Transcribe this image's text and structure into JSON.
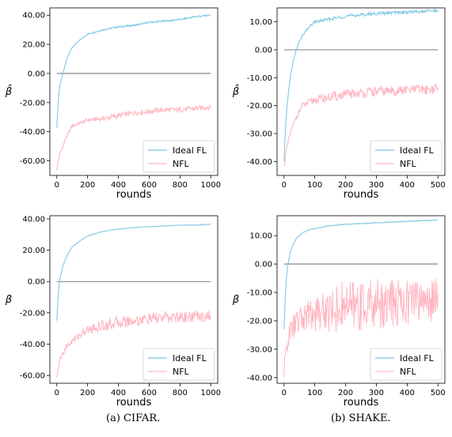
{
  "captions": [
    "(a) CIFAR.",
    "(b) SHAKE."
  ],
  "colors": {
    "ideal": "#7ec8e3",
    "nfl": "#ffb6c1",
    "zero_line": "#555555"
  },
  "chart_data": [
    {
      "id": "cifar-beta-hat",
      "type": "line",
      "ylabel": "β̂",
      "xlabel": "rounds",
      "xlim": [
        0,
        1000
      ],
      "ylim": [
        -70,
        45
      ],
      "xticks": [
        0,
        200,
        400,
        600,
        800,
        1000
      ],
      "yticks": [
        -60,
        -40,
        -20,
        0,
        20,
        40
      ],
      "ytick_labels": [
        "-60.00",
        "-40.00",
        "-20.00",
        "0.00",
        "20.00",
        "40.00"
      ],
      "legend": "bottom-right",
      "reference_line": 0,
      "series": [
        {
          "name": "Ideal FL",
          "color": "ideal",
          "x": [
            0,
            10,
            20,
            40,
            60,
            80,
            100,
            150,
            200,
            300,
            400,
            500,
            600,
            700,
            800,
            900,
            1000
          ],
          "y": [
            -37,
            -18,
            -8,
            0,
            8,
            14,
            18,
            23,
            27,
            30,
            32,
            33,
            35,
            36,
            37,
            39,
            40
          ]
        },
        {
          "name": "NFL",
          "color": "nfl",
          "x": [
            0,
            10,
            20,
            40,
            60,
            80,
            100,
            150,
            200,
            300,
            400,
            500,
            600,
            700,
            800,
            900,
            1000
          ],
          "y": [
            -66,
            -60,
            -55,
            -50,
            -44,
            -40,
            -36,
            -34,
            -32,
            -31,
            -29,
            -27,
            -26,
            -25,
            -25,
            -24,
            -23
          ]
        }
      ]
    },
    {
      "id": "shake-beta-hat",
      "type": "line",
      "ylabel": "β̂",
      "xlabel": "rounds",
      "xlim": [
        0,
        500
      ],
      "ylim": [
        -45,
        15
      ],
      "xticks": [
        0,
        100,
        200,
        300,
        400,
        500
      ],
      "yticks": [
        -40,
        -30,
        -20,
        -10,
        0,
        10
      ],
      "ytick_labels": [
        "-40.00",
        "-30.00",
        "-20.00",
        "-10.00",
        "0.00",
        "10.00"
      ],
      "legend": "bottom-right",
      "reference_line": 0,
      "series": [
        {
          "name": "Ideal FL",
          "color": "ideal",
          "x": [
            0,
            5,
            10,
            20,
            30,
            40,
            50,
            60,
            80,
            100,
            150,
            200,
            300,
            400,
            500
          ],
          "y": [
            -40,
            -28,
            -20,
            -10,
            -4,
            0,
            3,
            5,
            8,
            10,
            11,
            12,
            13,
            13.5,
            14
          ]
        },
        {
          "name": "NFL",
          "color": "nfl",
          "x": [
            0,
            5,
            10,
            20,
            30,
            40,
            50,
            60,
            80,
            100,
            150,
            200,
            300,
            400,
            500
          ],
          "y": [
            -42,
            -38,
            -35,
            -30,
            -27,
            -24,
            -22,
            -20,
            -19,
            -18,
            -17,
            -16,
            -15,
            -14.5,
            -14
          ]
        }
      ]
    },
    {
      "id": "cifar-beta",
      "type": "line",
      "ylabel": "β",
      "xlabel": "rounds",
      "xlim": [
        0,
        1000
      ],
      "ylim": [
        -65,
        42
      ],
      "xticks": [
        0,
        200,
        400,
        600,
        800,
        1000
      ],
      "yticks": [
        -60,
        -40,
        -20,
        0,
        20,
        40
      ],
      "ytick_labels": [
        "-60.00",
        "-40.00",
        "-20.00",
        "0.00",
        "20.00",
        "40.00"
      ],
      "legend": "bottom-right",
      "reference_line": 0,
      "series": [
        {
          "name": "Ideal FL",
          "color": "ideal",
          "x": [
            0,
            10,
            20,
            40,
            60,
            80,
            100,
            150,
            200,
            300,
            400,
            500,
            600,
            700,
            800,
            900,
            1000
          ],
          "y": [
            -25,
            -8,
            2,
            10,
            15,
            19,
            22,
            26,
            29,
            32,
            33.5,
            34.5,
            35,
            35.5,
            36,
            36,
            36.5
          ]
        },
        {
          "name": "NFL",
          "color": "nfl",
          "x": [
            0,
            10,
            20,
            40,
            60,
            80,
            100,
            150,
            200,
            300,
            400,
            500,
            600,
            700,
            800,
            900,
            1000
          ],
          "y": [
            -62,
            -55,
            -50,
            -46,
            -42,
            -40,
            -38,
            -34,
            -31,
            -28,
            -26,
            -25,
            -24,
            -23,
            -23,
            -22,
            -22
          ]
        }
      ]
    },
    {
      "id": "shake-beta",
      "type": "line",
      "ylabel": "β",
      "xlabel": "rounds",
      "xlim": [
        0,
        500
      ],
      "ylim": [
        -42,
        17
      ],
      "xticks": [
        0,
        100,
        200,
        300,
        400,
        500
      ],
      "yticks": [
        -40,
        -30,
        -20,
        -10,
        0,
        10
      ],
      "ytick_labels": [
        "-40.00",
        "-30.00",
        "-20.00",
        "-10.00",
        "0.00",
        "10.00"
      ],
      "legend": "bottom-right",
      "reference_line": 0,
      "series": [
        {
          "name": "Ideal FL",
          "color": "ideal",
          "x": [
            0,
            5,
            10,
            20,
            30,
            40,
            50,
            60,
            80,
            100,
            150,
            200,
            300,
            400,
            500
          ],
          "y": [
            -23,
            -10,
            -2,
            4,
            7,
            9,
            10,
            11,
            12,
            12.5,
            13.5,
            14,
            14.5,
            15,
            15.5
          ]
        },
        {
          "name": "NFL",
          "color": "nfl",
          "x": [
            0,
            5,
            10,
            20,
            30,
            40,
            50,
            60,
            80,
            100,
            150,
            200,
            300,
            400,
            500
          ],
          "y": [
            -39,
            -32,
            -28,
            -24,
            -22,
            -21,
            -20,
            -19,
            -18,
            -17,
            -16,
            -15,
            -14,
            -13,
            -12
          ]
        }
      ]
    }
  ]
}
